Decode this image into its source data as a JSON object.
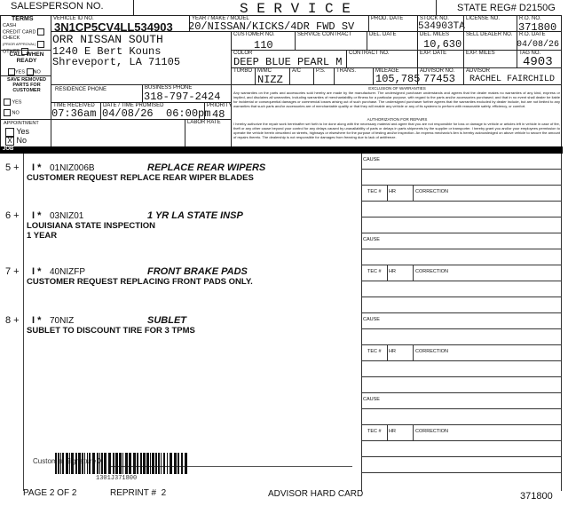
{
  "top": {
    "salesperson_label": "SALESPERSON NO.",
    "title": "S E R V I C E",
    "state_reg": "STATE REG# D2150G"
  },
  "terms": {
    "heading": "TERMS",
    "options": [
      "CASH",
      "CREDIT CARD",
      "CHECK",
      "(PRIOR APPROVAL)",
      "OTHER"
    ]
  },
  "call_when_ready": {
    "heading": "CALL WHEN READY",
    "yes": "YES",
    "no": "NO"
  },
  "save_parts": {
    "heading": "SAVE REMOVED PARTS FOR CUSTOMER",
    "yes": "YES",
    "no": "NO"
  },
  "appointment": {
    "heading": "APPOINTMENT",
    "yes": "Yes",
    "no": "No",
    "checked": "No"
  },
  "vehicle": {
    "vin_label": "VEHICLE ID No.",
    "vin": "3N1CP5CV4LL534903",
    "ymm_label": "YEAR / MAKE / MODEL",
    "ymm": "20/NISSAN/KICKS/4DR FWD SV",
    "prod_date_label": "PROD. DATE",
    "stock_label": "STOCK No.",
    "stock": "534903TA",
    "license_label": "LICENSE No.",
    "ro_label": "R.O. No.",
    "ro": "371800"
  },
  "customer": {
    "name": "ORR NISSAN SOUTH",
    "address": "1240 E Bert Kouns",
    "city": "Shreveport, LA 71105",
    "customer_no_label": "CUSTOMER No.",
    "customer_no": "110",
    "service_contract_label": "SERVICE CONTRACT",
    "del_date_label": "DEL. DATE",
    "del_miles_label": "DEL. MILES",
    "del_miles": "10,630",
    "sell_dealer_label": "SELL DEALER No.",
    "ro_date_label": "R.O. DATE",
    "ro_date": "04/08/26"
  },
  "row3": {
    "color_label": "COLOR",
    "color": "DEEP BLUE PEARL M",
    "contract_label": "CONTRACT No.",
    "exp_date_label": "EXP. DATE",
    "exp_miles_label": "EXP. MILES",
    "tag_label": "TAG No.",
    "tag": "4903"
  },
  "row4": {
    "turbo_label": "TURBO",
    "mmc_label": "M/MC",
    "mmc": "NIZZ",
    "ac_label": "A/C",
    "ps_label": "P.S.",
    "trans_label": "TRANS.",
    "mileage_label": "MILEAGE",
    "mileage": "105,785",
    "advisor_no_label": "ADVISOR No.",
    "advisor_no": "77453",
    "advisor_label": "ADVISOR",
    "advisor": "RACHEL FAIRCHILD"
  },
  "phones": {
    "residence_label": "RESIDENCE PHONE",
    "business_label": "BUSINESS PHONE",
    "business": "318-797-2424"
  },
  "times": {
    "received_label": "TIME RECEIVED",
    "received": "07:36am",
    "promised_label": "DATE / TIME PROMISED",
    "promised": "04/08/26  06:00pm",
    "priority_label": "PRIORITY",
    "priority": "48",
    "labor_rate_label": "LABOR RATE"
  },
  "legal": {
    "warranty_heading": "EXCLUSION OF WARRANTIES",
    "warranty_text": "Any warranties on the parts and accessories sold hereby are made by the manufacturer. The undersigned purchaser understands and agrees that the dealer makes no warranties of any kind, express or implied, and disclaims all warranties, including warranties of merchantability or fitness for a particular purpose, with regard to the parts and/or accessories purchased; and that in no event shall dealer be liable for incidental or consequential damages or commercial losses arising out of such purchase. The undersigned purchaser further agrees that the warranties excluded by dealer include, but are not limited to any warranties that such parts and/or accessories are of merchantable quality or that they will enable any vehicle or any of its systems to perform with reasonable safety, efficiency, or comfort.",
    "auth_heading": "AUTHORIZATION FOR REPAIRS",
    "auth_text": "I hereby authorize the repair work hereinafter set forth to be done along with the necessary material and agree that you are not responsible for loss or damage to vehicle or articles left in vehicle in case of fire, theft or any other cause beyond your control for any delays caused by unavailability of parts or delays in parts shipments by the supplier or transporter. I hereby grant you and/or your employees permission to operate the vehicle herein described on streets, highways or elsewhere for the purpose of testing and/or inspection. An express mechanic's lien is hereby acknowledged on above vehicle to secure the amount of repairs thereto. The dealership is not responsible for damages from freezing due to lack of antifreeze."
  },
  "job_label": "JOB",
  "jobs": [
    {
      "num": "5 +",
      "flag": "I *",
      "code": "01NIZ006B",
      "title": "REPLACE REAR WIPERS",
      "desc": [
        "CUSTOMER REQUEST REPLACE REAR WIPER BLADES"
      ]
    },
    {
      "num": "6 +",
      "flag": "I *",
      "code": "03NIZ01",
      "title": "1 YR LA STATE INSP",
      "desc": [
        "LOUISIANA STATE INSPECTION",
        "1 YEAR"
      ]
    },
    {
      "num": "7 +",
      "flag": "I *",
      "code": "40NIZFP",
      "title": "FRONT BRAKE PADS",
      "desc": [
        "CUSTOMER REQUEST REPLACING FRONT PADS ONLY."
      ]
    },
    {
      "num": "8 +",
      "flag": "I *",
      "code": "70NIZ",
      "title": "SUBLET",
      "desc": [
        "SUBLET TO DISCOUNT TIRE FOR 3 TPMS"
      ]
    }
  ],
  "right_panel": {
    "cause_label": "CAUSE",
    "tec_label": "TEC #",
    "hr_label": "HR",
    "correction_label": "CORRECTION"
  },
  "footer": {
    "signature_label": "Customer Signature X",
    "barcode_text": "1301J371800",
    "page": "PAGE 2  OF 2",
    "reprint": "REPRINT #  2",
    "card": "ADVISOR HARD CARD",
    "ro": "371800"
  }
}
